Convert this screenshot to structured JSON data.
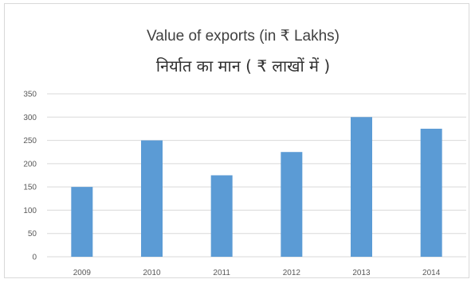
{
  "chart_data": {
    "type": "bar",
    "title": "Value of exports (in ₹ Lakhs)",
    "subtitle": "निर्यात का मान ( ₹ लाखों में )",
    "categories": [
      "2009",
      "2010",
      "2011",
      "2012",
      "2013",
      "2014"
    ],
    "values": [
      150,
      250,
      175,
      225,
      300,
      275
    ],
    "ylim": [
      0,
      350
    ],
    "yticks": [
      0,
      50,
      100,
      150,
      200,
      250,
      300,
      350
    ],
    "grid": true,
    "legend": "none",
    "colors": {
      "bar": "#5b9bd5",
      "grid": "#d9d9d9"
    }
  }
}
